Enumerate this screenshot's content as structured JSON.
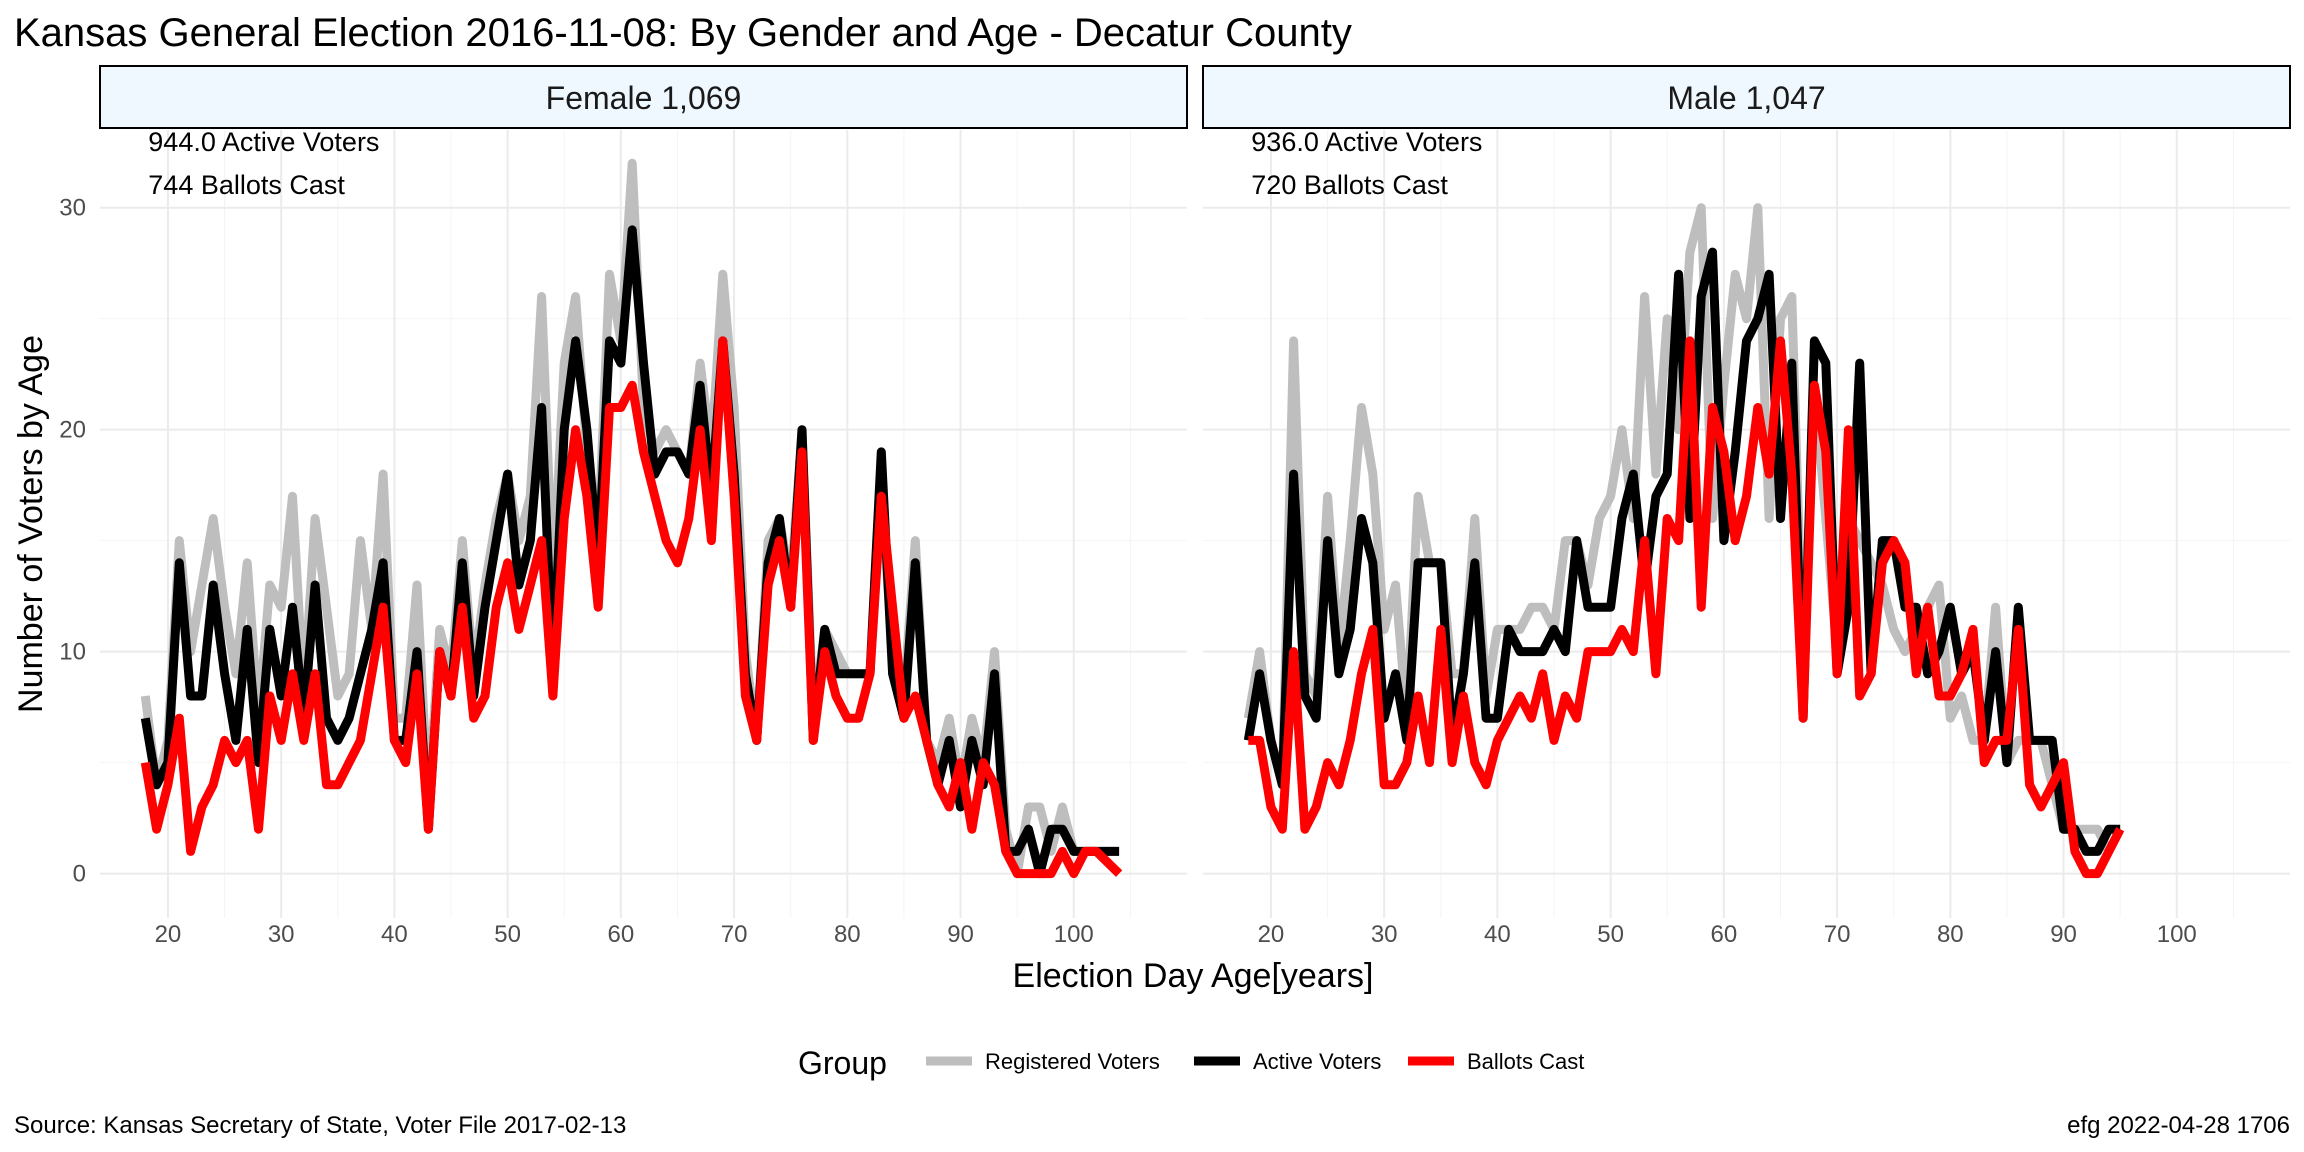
{
  "title": "Kansas General Election 2016-11-08:  By Gender and Age - Decatur County",
  "caption_left": "Source:  Kansas Secretary of State, Voter File  2017-02-13",
  "caption_right": "efg 2022-04-28 1706",
  "legend": {
    "title": "Group",
    "items": [
      {
        "label": "Registered Voters",
        "color": "#bebebe"
      },
      {
        "label": "Active Voters",
        "color": "#000000"
      },
      {
        "label": "Ballots Cast",
        "color": "#ff0000"
      }
    ]
  },
  "chart_data": {
    "type": "line",
    "xlabel": "Election Day Age[years]",
    "ylabel": "Number of Voters by Age",
    "xlim": [
      14,
      110
    ],
    "ylim": [
      -2,
      33.5
    ],
    "xticks": [
      20,
      30,
      40,
      50,
      60,
      70,
      80,
      90,
      100
    ],
    "yticks": [
      0,
      10,
      20,
      30
    ],
    "grid": true,
    "legend_position": "bottom",
    "panels": [
      {
        "strip": "Female 1,069",
        "annotations": [
          "944.0 Active Voters",
          "744 Ballots Cast"
        ],
        "x": [
          18,
          19,
          20,
          21,
          22,
          23,
          24,
          25,
          26,
          27,
          28,
          29,
          30,
          31,
          32,
          33,
          34,
          35,
          36,
          37,
          38,
          39,
          40,
          41,
          42,
          43,
          44,
          45,
          46,
          47,
          48,
          49,
          50,
          51,
          52,
          53,
          54,
          55,
          56,
          57,
          58,
          59,
          60,
          61,
          62,
          63,
          64,
          65,
          66,
          67,
          68,
          69,
          70,
          71,
          72,
          73,
          74,
          75,
          76,
          77,
          78,
          79,
          80,
          81,
          82,
          83,
          84,
          85,
          86,
          87,
          88,
          89,
          90,
          91,
          92,
          93,
          94,
          95,
          96,
          97,
          98,
          99,
          100,
          101,
          102,
          103,
          104
        ],
        "series": [
          {
            "name": "Registered Voters",
            "color": "#bebebe",
            "values": [
              8,
              4,
              6,
              15,
              10,
              13,
              16,
              12,
              9,
              14,
              7,
              13,
              12,
              17,
              8,
              16,
              12,
              8,
              9,
              15,
              11,
              18,
              7,
              7,
              13,
              3,
              11,
              9,
              15,
              9,
              13,
              16,
              18,
              15,
              17,
              26,
              13,
              23,
              26,
              19,
              15,
              27,
              24,
              32,
              21,
              19,
              20,
              19,
              18,
              23,
              19,
              27,
              21,
              10,
              6,
              15,
              16,
              13,
              20,
              7,
              11,
              10,
              9,
              9,
              9,
              17,
              10,
              8,
              15,
              6,
              5,
              7,
              4,
              7,
              5,
              10,
              2,
              0,
              3,
              3,
              1,
              3,
              1,
              1,
              1,
              1,
              1
            ]
          },
          {
            "name": "Active Voters",
            "color": "#000000",
            "values": [
              7,
              4,
              5,
              14,
              8,
              8,
              13,
              9,
              6,
              11,
              5,
              11,
              8,
              12,
              7,
              13,
              7,
              6,
              7,
              9,
              11,
              14,
              6,
              6,
              10,
              2,
              10,
              8,
              14,
              8,
              12,
              15,
              18,
              13,
              15,
              21,
              9,
              20,
              24,
              20,
              14,
              24,
              23,
              29,
              23,
              18,
              19,
              19,
              18,
              22,
              17,
              24,
              18,
              9,
              6,
              14,
              16,
              12,
              20,
              6,
              11,
              9,
              9,
              9,
              9,
              19,
              9,
              7,
              14,
              6,
              4,
              6,
              3,
              6,
              4,
              9,
              1,
              1,
              2,
              0,
              2,
              2,
              1,
              1,
              1,
              1,
              1
            ]
          },
          {
            "name": "Ballots Cast",
            "color": "#ff0000",
            "values": [
              5,
              2,
              4,
              7,
              1,
              3,
              4,
              6,
              5,
              6,
              2,
              8,
              6,
              9,
              6,
              9,
              4,
              4,
              5,
              6,
              9,
              12,
              6,
              5,
              9,
              2,
              10,
              8,
              12,
              7,
              8,
              12,
              14,
              11,
              13,
              15,
              8,
              16,
              20,
              17,
              12,
              21,
              21,
              22,
              19,
              17,
              15,
              14,
              16,
              20,
              15,
              24,
              17,
              8,
              6,
              13,
              15,
              12,
              19,
              6,
              10,
              8,
              7,
              7,
              9,
              17,
              12,
              7,
              8,
              6,
              4,
              3,
              5,
              2,
              5,
              4,
              1,
              0,
              0,
              0,
              0,
              1,
              0,
              1,
              1,
              0.5,
              0
            ]
          }
        ]
      },
      {
        "strip": "Male 1,047",
        "annotations": [
          "936.0 Active Voters",
          "720 Ballots Cast"
        ],
        "x": [
          18,
          19,
          20,
          21,
          22,
          23,
          24,
          25,
          26,
          27,
          28,
          29,
          30,
          31,
          32,
          33,
          34,
          35,
          36,
          37,
          38,
          39,
          40,
          41,
          42,
          43,
          44,
          45,
          46,
          47,
          48,
          49,
          50,
          51,
          52,
          53,
          54,
          55,
          56,
          57,
          58,
          59,
          60,
          61,
          62,
          63,
          64,
          65,
          66,
          67,
          68,
          69,
          70,
          71,
          72,
          73,
          74,
          75,
          76,
          77,
          78,
          79,
          80,
          81,
          82,
          83,
          84,
          85,
          86,
          87,
          88,
          89,
          90,
          91,
          92,
          93,
          94,
          95
        ],
        "series": [
          {
            "name": "Registered Voters",
            "color": "#bebebe",
            "values": [
              7,
              10,
              6,
              4,
              24,
              9,
              8,
              17,
              10,
              15,
              21,
              18,
              11,
              13,
              7,
              17,
              14,
              14,
              9,
              9,
              16,
              8,
              11,
              11,
              11,
              12,
              12,
              11,
              15,
              15,
              13,
              16,
              17,
              20,
              16,
              26,
              18,
              25,
              20,
              28,
              30,
              16,
              22,
              27,
              25,
              30,
              16,
              25,
              26,
              9,
              22,
              16,
              10,
              16,
              15,
              14,
              13,
              11,
              10,
              11,
              12,
              13,
              7,
              8,
              6,
              6,
              12,
              5,
              6,
              6,
              6,
              4,
              2,
              2,
              2,
              2,
              1,
              2
            ]
          },
          {
            "name": "Active Voters",
            "color": "#000000",
            "values": [
              6,
              9,
              6,
              4,
              18,
              8,
              7,
              15,
              9,
              11,
              16,
              14,
              7,
              9,
              6,
              14,
              14,
              14,
              6,
              9,
              14,
              7,
              7,
              11,
              10,
              10,
              10,
              11,
              10,
              15,
              12,
              12,
              12,
              16,
              18,
              13,
              17,
              18,
              27,
              16,
              26,
              28,
              15,
              19,
              24,
              25,
              27,
              16,
              23,
              7,
              24,
              23,
              9,
              12,
              23,
              9,
              15,
              15,
              12,
              12,
              9,
              10,
              12,
              9,
              10,
              6,
              10,
              5,
              12,
              6,
              6,
              6,
              2,
              2,
              1,
              1,
              2,
              2
            ]
          },
          {
            "name": "Ballots Cast",
            "color": "#ff0000",
            "values": [
              6,
              6,
              3,
              2,
              10,
              2,
              3,
              5,
              4,
              6,
              9,
              11,
              4,
              4,
              5,
              8,
              5,
              11,
              5,
              8,
              5,
              4,
              6,
              7,
              8,
              7,
              9,
              6,
              8,
              7,
              10,
              10,
              10,
              11,
              10,
              15,
              9,
              16,
              15,
              24,
              12,
              21,
              19,
              15,
              17,
              21,
              18,
              24,
              18,
              7,
              22,
              19,
              9,
              20,
              8,
              9,
              14,
              15,
              14,
              9,
              12,
              8,
              8,
              9,
              11,
              5,
              6,
              6,
              11,
              4,
              3,
              4,
              5,
              1,
              0,
              0,
              1,
              2
            ]
          }
        ]
      }
    ]
  }
}
